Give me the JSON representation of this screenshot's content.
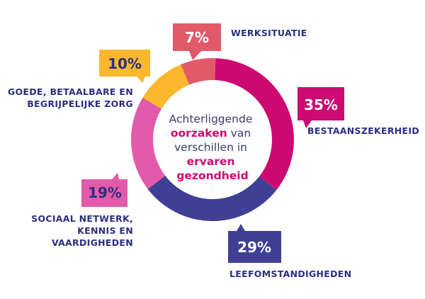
{
  "chart_data": {
    "type": "pie",
    "variant": "donut",
    "title": "Achterliggende oorzaken van verschillen in ervaren gezondheid",
    "center_text": {
      "line1": "Achterliggende",
      "line2_highlight": "oorzaken",
      "line2_rest": " van",
      "line3": "verschillen in",
      "line4_highlight": "ervaren",
      "line5_highlight": "gezondheid"
    },
    "slices": [
      {
        "key": "werksituatie",
        "label_lines": [
          "WERKSITUATIE"
        ],
        "value": 7,
        "value_label": "7%",
        "color": "#e05a6a"
      },
      {
        "key": "bestaanszekerheid",
        "label_lines": [
          "BESTAANSZEKERHEID"
        ],
        "value": 35,
        "value_label": "35%",
        "color": "#cc0a72"
      },
      {
        "key": "leefomstandigheden",
        "label_lines": [
          "LEEFOMSTANDIGHEDEN"
        ],
        "value": 29,
        "value_label": "29%",
        "color": "#3f3f93"
      },
      {
        "key": "sociaal_netwerk",
        "label_lines": [
          "SOCIAAL NETWERK,",
          "KENNIS EN",
          "VAARDIGHEDEN"
        ],
        "value": 19,
        "value_label": "19%",
        "color": "#e25aa9"
      },
      {
        "key": "zorg",
        "label_lines": [
          "GOEDE, BETAALBARE EN",
          "BEGRIJPELIJKE ZORG"
        ],
        "value": 10,
        "value_label": "10%",
        "color": "#fbb72d"
      }
    ],
    "colors": {
      "label_text": "#2c2f7e",
      "center_text": "#3a3a6e",
      "center_highlight": "#cc0a72",
      "badge_text_dark": "#2c2f7e",
      "badge_text_light": "#ffffff"
    }
  }
}
